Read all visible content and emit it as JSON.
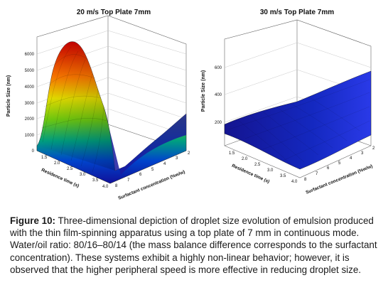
{
  "caption": {
    "label": "Figure 10:",
    "text": "Three-dimensional depiction of droplet size evolution of emulsion produced with the thin film-spinning apparatus using a top plate of 7 mm in continuous mode. Water/oil ratio: 80/16–80/14 (the mass balance difference corresponds to the surfactant concentration). These systems exhibit a highly non-linear behavior; however, it is observed that the higher peripheral speed is more effective in reducing droplet size."
  },
  "chart_data": [
    {
      "type": "surface",
      "title": "20 m/s Top Plate 7mm",
      "zlabel": "Particle Size (nm)",
      "xlabel": "Residence time (s)",
      "ylabel": "Surfactant concentration (%w/w)",
      "x_ticks": [
        "1.5",
        "2.0",
        "2.5",
        "3.0",
        "3.5",
        "4.0"
      ],
      "y_ticks": [
        "2",
        "3",
        "4",
        "5",
        "6",
        "7",
        "8"
      ],
      "z_ticks": [
        "0",
        "1000",
        "2000",
        "3000",
        "4000",
        "5000",
        "6000"
      ],
      "x_range": [
        1.5,
        4.0
      ],
      "y_range": [
        2,
        8
      ],
      "z_range": [
        0,
        6000
      ],
      "surface_z_samples": [
        {
          "x": 1.5,
          "y": 8,
          "z": 300
        },
        {
          "x": 1.5,
          "y": 5,
          "z": 4600
        },
        {
          "x": 1.5,
          "y": 2,
          "z": 900
        },
        {
          "x": 2.5,
          "y": 6,
          "z": 3800
        },
        {
          "x": 4.0,
          "y": 8,
          "z": 200
        },
        {
          "x": 4.0,
          "y": 2,
          "z": 1900
        }
      ],
      "colormap": [
        "#1010a0",
        "#0050d0",
        "#00b070",
        "#80d000",
        "#f0e000",
        "#ff7000",
        "#d00000"
      ]
    },
    {
      "type": "surface",
      "title": "30 m/s Top Plate 7mm",
      "zlabel": "Particle Size (nm)",
      "xlabel": "Residence time (s)",
      "ylabel": "Surfactant concentration (%w/w)",
      "x_ticks": [
        "1.5",
        "2.0",
        "2.5",
        "3.0",
        "3.5",
        "4.0"
      ],
      "y_ticks": [
        "2",
        "3",
        "4",
        "5",
        "6",
        "7",
        "8"
      ],
      "z_ticks": [
        "200",
        "400",
        "600"
      ],
      "x_range": [
        1.5,
        4.0
      ],
      "y_range": [
        2,
        8
      ],
      "z_range": [
        0,
        700
      ],
      "surface_z_samples": [
        {
          "x": 1.5,
          "y": 8,
          "z": 170
        },
        {
          "x": 4.0,
          "y": 8,
          "z": 90
        },
        {
          "x": 4.0,
          "y": 2,
          "z": 460
        },
        {
          "x": 1.5,
          "y": 2,
          "z": 170
        }
      ],
      "colormap": [
        "#0a0a8a",
        "#1020c0",
        "#2030e0"
      ]
    }
  ]
}
